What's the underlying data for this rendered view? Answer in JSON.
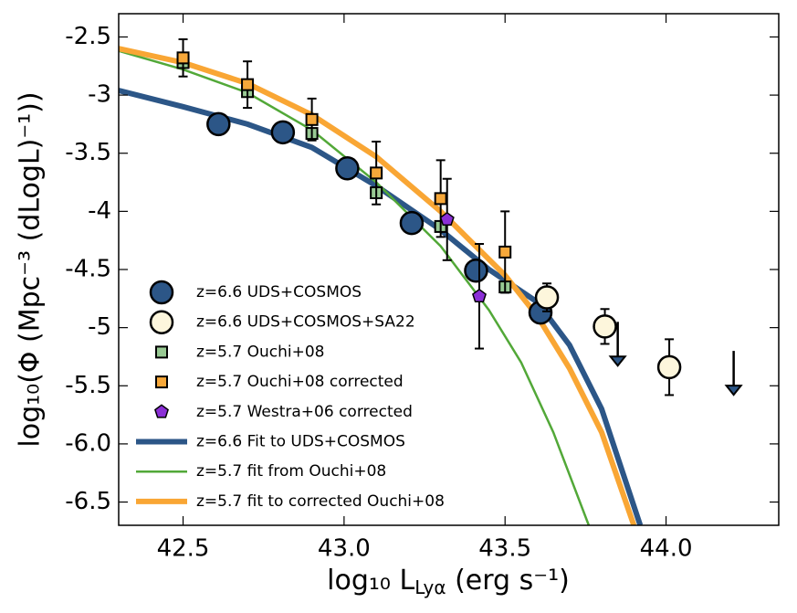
{
  "chart_data": {
    "type": "scatter",
    "xlabel": [
      "log₁₀ L",
      "Lyα",
      " (erg s⁻¹)"
    ],
    "ylabel": "log₁₀(Φ (Mpc⁻³ (dLogL)⁻¹))",
    "xlim": [
      42.3,
      44.35
    ],
    "ylim": [
      -6.7,
      -2.3
    ],
    "xticks": [
      42.5,
      {
        "value": 43.0,
        "label": "43.0"
      },
      43.5,
      {
        "value": 44.0,
        "label": "44.0"
      }
    ],
    "yticks": [
      -2.5,
      -3,
      -3.5,
      -4,
      -4.5,
      -5,
      -5.5,
      {
        "value": -6.0,
        "label": "-6.0"
      },
      -6.5
    ],
    "legend": "lower left",
    "series": [
      {
        "name": "z=6.6 UDS+COSMOS",
        "type": "scatter",
        "marker": "circle",
        "color": "#2c5687",
        "x": [
          42.61,
          42.81,
          43.01,
          43.21,
          43.41,
          43.61
        ],
        "values": [
          -3.25,
          -3.32,
          -3.63,
          -4.1,
          -4.51,
          -4.87
        ]
      },
      {
        "name": "z=6.6 UDS+COSMOS+SA22",
        "type": "scatter",
        "marker": "circle",
        "color": "#fdf6dc",
        "x": [
          43.63,
          43.81,
          44.01
        ],
        "values": [
          -4.74,
          -4.99,
          -5.34
        ],
        "errors": [
          0.12,
          0.15,
          0.24
        ]
      },
      {
        "name": "z=5.7 Ouchi+08",
        "type": "scatter",
        "marker": "square",
        "color": "#98c993",
        "x": [
          42.5,
          42.7,
          42.9,
          43.1,
          43.3,
          43.5
        ],
        "values": [
          -2.72,
          -2.97,
          -3.33,
          -3.84,
          -4.13,
          -4.65
        ]
      },
      {
        "name": "z=5.7 Ouchi+08 corrected",
        "type": "scatter",
        "marker": "square",
        "color": "#f7a83a",
        "x": [
          42.5,
          42.7,
          42.9,
          43.1,
          43.3,
          43.5
        ],
        "values": [
          -2.68,
          -2.91,
          -3.21,
          -3.67,
          -3.89,
          -4.35
        ],
        "errors": [
          0.16,
          0.2,
          0.18,
          0.27,
          0.33,
          0.35
        ]
      },
      {
        "name": "z=5.7 Westra+06 corrected",
        "type": "scatter",
        "marker": "pentagon",
        "color": "#8b2fd6",
        "x": [
          43.32,
          43.42
        ],
        "values": [
          -4.07,
          -4.73
        ],
        "errors": [
          0.35,
          0.45
        ]
      },
      {
        "name": "z=6.6 Fit to UDS+COSMOS",
        "type": "line",
        "width": 6,
        "color": "#2c5687",
        "x": [
          42.3,
          42.5,
          42.7,
          42.9,
          43.1,
          43.3,
          43.45,
          43.6,
          43.7,
          43.8,
          43.92
        ],
        "values": [
          -2.96,
          -3.1,
          -3.25,
          -3.45,
          -3.78,
          -4.16,
          -4.5,
          -4.78,
          -5.15,
          -5.7,
          -6.7
        ]
      },
      {
        "name": "z=5.7 fit from Ouchi+08",
        "type": "line",
        "width": 2.5,
        "color": "#52a838",
        "x": [
          42.3,
          42.5,
          42.7,
          42.9,
          43.1,
          43.3,
          43.45,
          43.55,
          43.65,
          43.76
        ],
        "values": [
          -2.62,
          -2.78,
          -2.98,
          -3.3,
          -3.75,
          -4.3,
          -4.85,
          -5.3,
          -5.9,
          -6.7
        ]
      },
      {
        "name": "z=5.7 fit to corrected Ouchi+08",
        "type": "line",
        "width": 6,
        "color": "#f9a634",
        "x": [
          42.3,
          42.5,
          42.7,
          42.9,
          43.1,
          43.3,
          43.5,
          43.6,
          43.7,
          43.8,
          43.9
        ],
        "values": [
          -2.6,
          -2.72,
          -2.9,
          -3.17,
          -3.53,
          -4.0,
          -4.55,
          -4.9,
          -5.35,
          -5.9,
          -6.7
        ]
      }
    ],
    "upper_limits": {
      "x": [
        43.85,
        44.21
      ],
      "values": [
        -4.95,
        -5.2
      ],
      "color": "#000000"
    }
  }
}
